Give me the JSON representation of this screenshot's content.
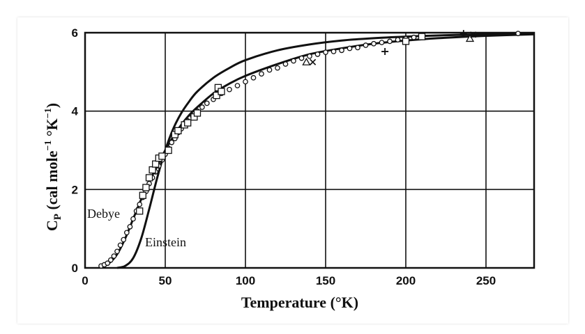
{
  "chart_data": {
    "type": "line",
    "xlabel": "Temperature (°K)",
    "ylabel": "C_P (cal mole^-1 °K^-1)",
    "xlim": [
      0,
      280
    ],
    "ylim": [
      0,
      6
    ],
    "x_ticks": [
      0,
      50,
      100,
      150,
      200,
      250
    ],
    "y_ticks": [
      0,
      2,
      4,
      6
    ],
    "grid": true,
    "legend": "none",
    "series": [
      {
        "name": "Debye",
        "style": "line",
        "x": [
          10,
          15,
          20,
          25,
          30,
          35,
          40,
          45,
          50,
          55,
          60,
          65,
          70,
          80,
          90,
          100,
          120,
          140,
          160,
          180,
          200,
          220,
          250,
          280
        ],
        "y": [
          0.02,
          0.12,
          0.35,
          0.75,
          1.25,
          1.75,
          2.2,
          2.6,
          3.0,
          3.35,
          3.65,
          3.9,
          4.1,
          4.45,
          4.7,
          4.9,
          5.2,
          5.45,
          5.6,
          5.72,
          5.8,
          5.86,
          5.92,
          5.96
        ]
      },
      {
        "name": "Einstein",
        "style": "line",
        "x": [
          20,
          25,
          30,
          35,
          40,
          45,
          50,
          55,
          60,
          65,
          70,
          80,
          90,
          100,
          120,
          140,
          160,
          180,
          200,
          220,
          250,
          280
        ],
        "y": [
          0.0,
          0.05,
          0.25,
          0.75,
          1.5,
          2.3,
          3.0,
          3.55,
          3.95,
          4.25,
          4.5,
          4.85,
          5.1,
          5.3,
          5.55,
          5.7,
          5.8,
          5.86,
          5.9,
          5.93,
          5.96,
          5.98
        ]
      }
    ],
    "points": [
      {
        "marker": "circle",
        "data": [
          [
            10,
            0.05
          ],
          [
            12,
            0.08
          ],
          [
            14,
            0.12
          ],
          [
            16,
            0.2
          ],
          [
            18,
            0.3
          ],
          [
            20,
            0.42
          ],
          [
            22,
            0.58
          ],
          [
            24,
            0.72
          ],
          [
            26,
            0.9
          ],
          [
            28,
            1.05
          ],
          [
            30,
            1.25
          ],
          [
            32,
            1.45
          ],
          [
            34,
            1.62
          ],
          [
            36,
            1.8
          ],
          [
            38,
            1.95
          ],
          [
            40,
            2.15
          ],
          [
            42,
            2.3
          ],
          [
            44,
            2.45
          ],
          [
            46,
            2.6
          ],
          [
            48,
            2.75
          ],
          [
            50,
            2.9
          ],
          [
            52,
            3.05
          ],
          [
            54,
            3.2
          ],
          [
            56,
            3.3
          ],
          [
            58,
            3.45
          ],
          [
            60,
            3.55
          ],
          [
            62,
            3.65
          ],
          [
            64,
            3.75
          ],
          [
            67,
            3.88
          ],
          [
            70,
            4.0
          ],
          [
            73,
            4.1
          ],
          [
            76,
            4.2
          ],
          [
            80,
            4.3
          ],
          [
            85,
            4.45
          ],
          [
            90,
            4.55
          ],
          [
            95,
            4.65
          ],
          [
            100,
            4.75
          ],
          [
            105,
            4.85
          ],
          [
            110,
            4.95
          ],
          [
            115,
            5.05
          ],
          [
            120,
            5.1
          ],
          [
            125,
            5.2
          ],
          [
            130,
            5.28
          ],
          [
            135,
            5.35
          ],
          [
            140,
            5.4
          ],
          [
            145,
            5.45
          ],
          [
            150,
            5.5
          ],
          [
            155,
            5.52
          ],
          [
            160,
            5.55
          ],
          [
            165,
            5.6
          ],
          [
            170,
            5.62
          ],
          [
            175,
            5.68
          ],
          [
            180,
            5.72
          ],
          [
            185,
            5.75
          ],
          [
            190,
            5.78
          ],
          [
            195,
            5.82
          ],
          [
            200,
            5.85
          ],
          [
            205,
            5.88
          ],
          [
            270,
            5.98
          ]
        ]
      },
      {
        "marker": "square",
        "data": [
          [
            34,
            1.45
          ],
          [
            36,
            1.85
          ],
          [
            38,
            2.05
          ],
          [
            40,
            2.3
          ],
          [
            42,
            2.5
          ],
          [
            44,
            2.65
          ],
          [
            46,
            2.8
          ],
          [
            48,
            2.85
          ],
          [
            52,
            3.0
          ],
          [
            56,
            3.4
          ],
          [
            58,
            3.5
          ],
          [
            62,
            3.65
          ],
          [
            64,
            3.7
          ],
          [
            68,
            3.85
          ],
          [
            70,
            3.95
          ],
          [
            82,
            4.4
          ],
          [
            83,
            4.6
          ],
          [
            85,
            4.5
          ],
          [
            200,
            5.78
          ],
          [
            210,
            5.9
          ]
        ]
      },
      {
        "marker": "triangle",
        "data": [
          [
            138,
            5.25
          ],
          [
            240,
            5.85
          ]
        ]
      },
      {
        "marker": "x",
        "data": [
          [
            142,
            5.25
          ],
          [
            242,
            5.95
          ]
        ]
      },
      {
        "marker": "plus",
        "data": [
          [
            187,
            5.52
          ],
          [
            236,
            5.98
          ]
        ]
      }
    ],
    "annotations": [
      {
        "text": "Debye"
      },
      {
        "text": "Einstein"
      }
    ]
  }
}
